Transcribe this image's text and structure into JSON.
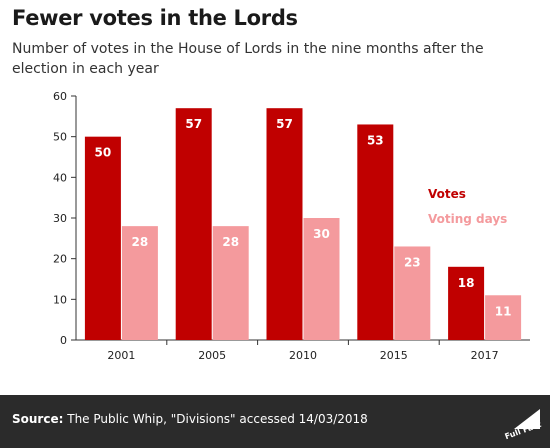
{
  "header": {
    "title": "Fewer votes in the Lords",
    "subtitle": "Number of votes in the House of Lords in the nine months after the election in each year"
  },
  "footer": {
    "source_label": "Source:",
    "source_text": "The Public Whip, \"Divisions\" accessed 14/03/2018",
    "logo_text": "Full Fact"
  },
  "colors": {
    "votes": "#c00000",
    "voting_days": "#f49a9d",
    "footer_bg": "#2b2b2b"
  },
  "chart_data": {
    "type": "bar",
    "categories": [
      "2001",
      "2005",
      "2010",
      "2015",
      "2017"
    ],
    "series": [
      {
        "name": "Votes",
        "values": [
          50,
          57,
          57,
          53,
          18
        ]
      },
      {
        "name": "Voting days",
        "values": [
          28,
          28,
          30,
          23,
          11
        ]
      }
    ],
    "title": "Fewer votes in the Lords",
    "xlabel": "",
    "ylabel": "",
    "ylim": [
      0,
      60
    ],
    "yticks": [
      0,
      10,
      20,
      30,
      40,
      50,
      60
    ],
    "grid": false,
    "legend_position": "right"
  }
}
